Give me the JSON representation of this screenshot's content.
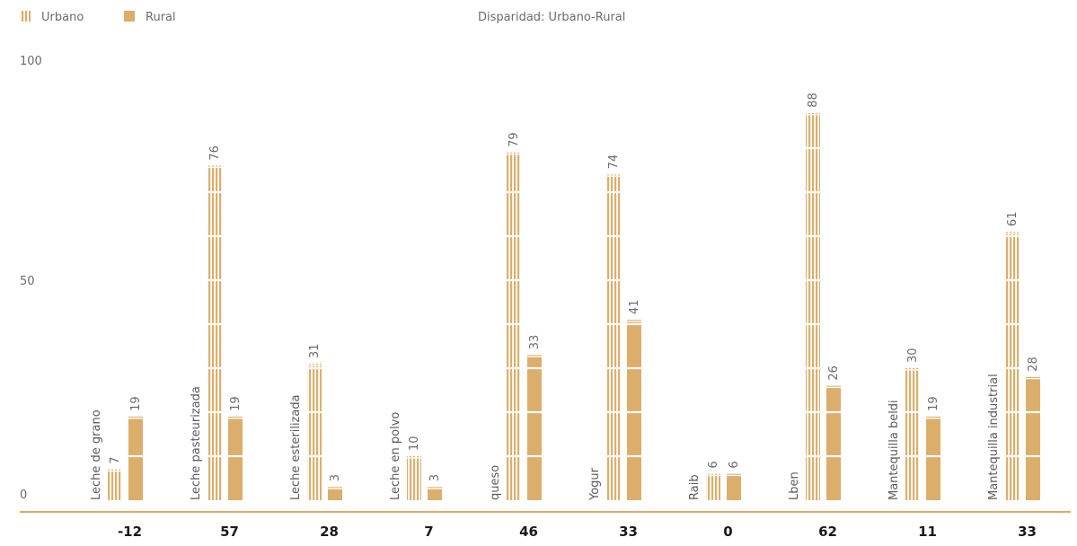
{
  "colors": {
    "bar": "#dcae6b",
    "axis": "#d98a3a",
    "text": "#6b6b6b",
    "disparity": "#1a1a1a"
  },
  "legend": {
    "urbano": "Urbano",
    "rural": "Rural",
    "disparity_title": "Disparidad: Urbano-Rural"
  },
  "chart_data": {
    "type": "bar",
    "ylim": [
      0,
      100
    ],
    "yticks": [
      0,
      50,
      100
    ],
    "grid": false,
    "legend_position": "top-left",
    "categories": [
      "Leche de grano",
      "Leche pasteurizada",
      "Leche esterilizada",
      "Leche en polvo",
      "queso",
      "Yogur",
      "Raib",
      "Lben",
      "Mantequilla beldi",
      "Mantequilla industrial"
    ],
    "series": [
      {
        "name": "Urbano",
        "pattern": "striped",
        "values": [
          7,
          76,
          31,
          10,
          79,
          74,
          6,
          88,
          30,
          61
        ]
      },
      {
        "name": "Rural",
        "pattern": "solid",
        "values": [
          19,
          19,
          3,
          3,
          33,
          41,
          6,
          26,
          19,
          28
        ]
      }
    ],
    "disparity": [
      "-12",
      "57",
      "28",
      "7",
      "46",
      "33",
      "0",
      "62",
      "11",
      "33"
    ]
  }
}
